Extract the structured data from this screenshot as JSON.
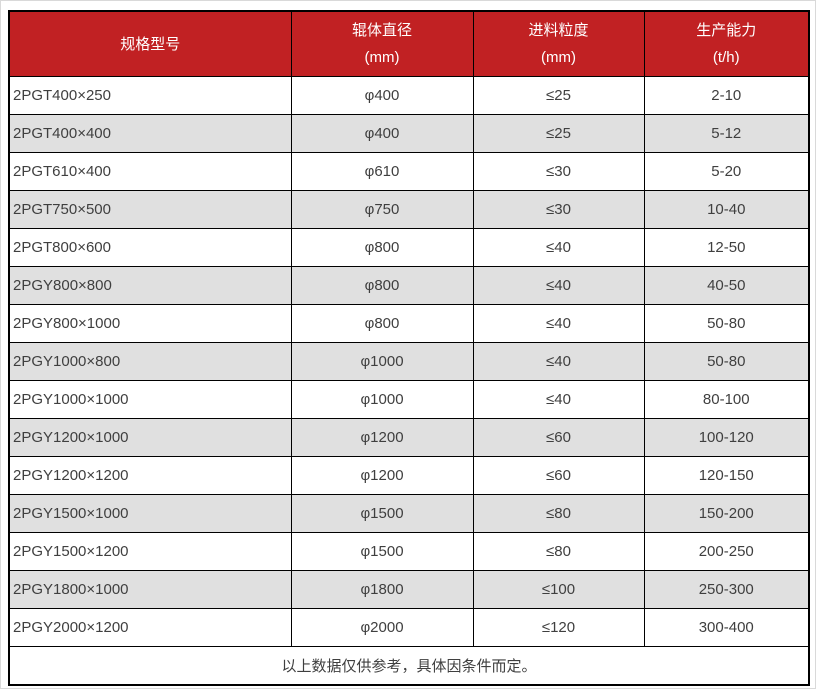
{
  "table": {
    "headers": [
      {
        "title": "规格型号",
        "unit": ""
      },
      {
        "title": "辊体直径",
        "unit": "(mm)"
      },
      {
        "title": "进料粒度",
        "unit": "(mm)"
      },
      {
        "title": "生产能力",
        "unit": "(t/h)"
      }
    ],
    "rows": [
      [
        "2PGT400×250",
        "φ400",
        "≤25",
        "2-10"
      ],
      [
        "2PGT400×400",
        "φ400",
        "≤25",
        "5-12"
      ],
      [
        "2PGT610×400",
        "φ610",
        "≤30",
        "5-20"
      ],
      [
        "2PGT750×500",
        "φ750",
        "≤30",
        "10-40"
      ],
      [
        "2PGT800×600",
        "φ800",
        "≤40",
        "12-50"
      ],
      [
        "2PGY800×800",
        "φ800",
        "≤40",
        "40-50"
      ],
      [
        "2PGY800×1000",
        "φ800",
        "≤40",
        "50-80"
      ],
      [
        "2PGY1000×800",
        "φ1000",
        "≤40",
        "50-80"
      ],
      [
        "2PGY1000×1000",
        "φ1000",
        "≤40",
        "80-100"
      ],
      [
        "2PGY1200×1000",
        "φ1200",
        "≤60",
        "100-120"
      ],
      [
        "2PGY1200×1200",
        "φ1200",
        "≤60",
        "120-150"
      ],
      [
        "2PGY1500×1000",
        "φ1500",
        "≤80",
        "150-200"
      ],
      [
        "2PGY1500×1200",
        "φ1500",
        "≤80",
        "200-250"
      ],
      [
        "2PGY1800×1000",
        "φ1800",
        "≤100",
        "250-300"
      ],
      [
        "2PGY2000×1200",
        "φ2000",
        "≤120",
        "300-400"
      ]
    ],
    "footer_note": "以上数据仅供参考，具体因条件而定。"
  },
  "colors": {
    "header_bg": "#C12123",
    "header_text": "#FFFFFF",
    "row_bg": "#FFFFFF",
    "alt_row_bg": "#E0E0E0",
    "border": "#000000",
    "body_text": "#3F3F3F"
  }
}
